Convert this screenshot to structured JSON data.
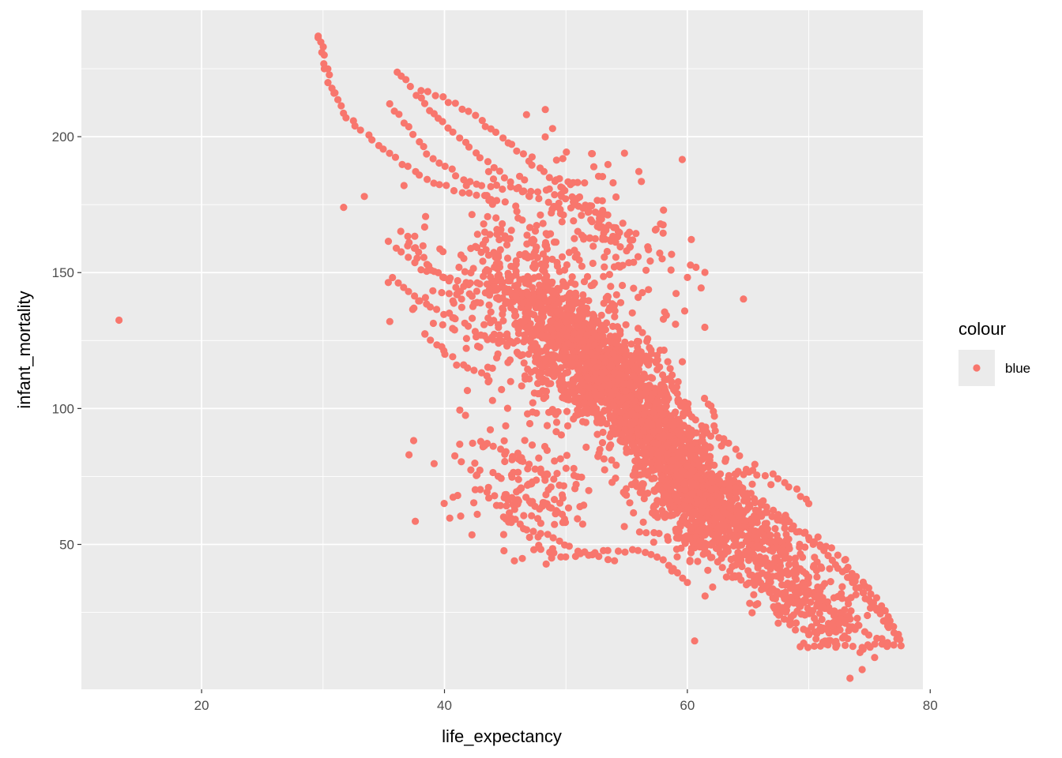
{
  "chart_data": {
    "type": "scatter",
    "title": "",
    "xlabel": "life_expectancy",
    "ylabel": "infant_mortality",
    "xlim": [
      10.1,
      79.4
    ],
    "ylim": [
      -3.3,
      246.5
    ],
    "x_ticks": [
      20,
      40,
      60,
      80
    ],
    "x_tick_labels": [
      "20",
      "40",
      "60",
      "80"
    ],
    "y_ticks": [
      50,
      100,
      150,
      200
    ],
    "y_tick_labels": [
      "50",
      "100",
      "150",
      "200"
    ],
    "grid": true,
    "legend": {
      "title": "colour",
      "position": "right",
      "entries": [
        {
          "label": "blue",
          "color": "#F8766D"
        }
      ]
    },
    "point_color": "#F8766D",
    "panel_color": "#EBEBEB",
    "series": [
      {
        "name": "blue",
        "notable_points": [
          {
            "x": 13.2,
            "y": 132.5
          },
          {
            "x": 29.6,
            "y": 237
          },
          {
            "x": 29.9,
            "y": 231
          },
          {
            "x": 30.1,
            "y": 225
          },
          {
            "x": 30.9,
            "y": 216
          },
          {
            "x": 31.7,
            "y": 174
          },
          {
            "x": 33.4,
            "y": 178
          },
          {
            "x": 35.5,
            "y": 132
          },
          {
            "x": 37.6,
            "y": 58.5
          },
          {
            "x": 48.3,
            "y": 210
          },
          {
            "x": 48.9,
            "y": 203
          },
          {
            "x": 60.6,
            "y": 14.5
          }
        ],
        "trajectories": [
          [
            [
              29.6,
              237
            ],
            [
              30.5,
              220
            ],
            [
              32,
              207
            ],
            [
              34,
              199
            ],
            [
              36.5,
              190
            ],
            [
              39,
              183
            ],
            [
              42,
              179
            ],
            [
              45,
              176
            ]
          ],
          [
            [
              36,
              224
            ],
            [
              38,
              214
            ],
            [
              40,
              205
            ],
            [
              42,
              196
            ],
            [
              44.5,
              187
            ],
            [
              47,
              178
            ]
          ],
          [
            [
              38,
              217
            ],
            [
              41,
              212
            ],
            [
              43,
              206
            ],
            [
              46,
              195
            ],
            [
              50,
              180
            ],
            [
              53,
              170
            ],
            [
              55.5,
              162
            ]
          ],
          [
            [
              35.5,
              212
            ],
            [
              37,
              203
            ],
            [
              39,
              192
            ],
            [
              42,
              183
            ],
            [
              46,
              181
            ],
            [
              49,
              179
            ],
            [
              51,
              175
            ],
            [
              53,
              167
            ],
            [
              55,
              158
            ]
          ],
          [
            [
              35.5,
              161
            ],
            [
              38,
              152
            ],
            [
              41,
              147
            ],
            [
              44,
              145
            ],
            [
              47,
              141
            ],
            [
              51,
              131
            ]
          ],
          [
            [
              36.5,
              165
            ],
            [
              39,
              151
            ],
            [
              42,
              143
            ],
            [
              45,
              144
            ],
            [
              48,
              135
            ]
          ],
          [
            [
              35.8,
              148
            ],
            [
              38,
              140
            ],
            [
              41,
              133
            ],
            [
              43,
              127
            ]
          ],
          [
            [
              37.5,
              137
            ],
            [
              39,
              143
            ],
            [
              41,
              142
            ]
          ],
          [
            [
              38.5,
              127
            ],
            [
              41,
              117
            ],
            [
              43.5,
              112
            ]
          ],
          [
            [
              46,
              149
            ],
            [
              49,
              138
            ],
            [
              51,
              126
            ],
            [
              53,
              113
            ],
            [
              55,
              101
            ],
            [
              57,
              90
            ],
            [
              59,
              80
            ],
            [
              61,
              71
            ],
            [
              63,
              63
            ]
          ],
          [
            [
              49,
              140
            ],
            [
              52,
              125
            ],
            [
              54,
              113
            ],
            [
              56,
              100
            ],
            [
              58,
              89
            ],
            [
              60,
              79
            ],
            [
              62,
              70
            ],
            [
              64,
              62
            ],
            [
              66,
              54
            ],
            [
              68,
              46
            ],
            [
              70,
              38
            ]
          ],
          [
            [
              56,
              130
            ],
            [
              58,
              113
            ],
            [
              60,
              99
            ],
            [
              62,
              90
            ],
            [
              64,
              85
            ]
          ],
          [
            [
              43,
              88
            ],
            [
              46,
              82
            ],
            [
              49,
              74
            ]
          ],
          [
            [
              45,
              59
            ],
            [
              48,
              54
            ],
            [
              51,
              48
            ],
            [
              54,
              44
            ]
          ],
          [
            [
              49,
              45
            ],
            [
              53,
              47
            ],
            [
              56,
              48
            ],
            [
              58,
              44
            ],
            [
              60,
              36
            ]
          ],
          [
            [
              56,
              55
            ],
            [
              59,
              53
            ],
            [
              62,
              50
            ],
            [
              65,
              40
            ],
            [
              68,
              30
            ]
          ],
          [
            [
              60,
              58
            ],
            [
              62,
              45
            ],
            [
              65,
              35
            ],
            [
              69,
              30
            ],
            [
              72,
              25
            ]
          ],
          [
            [
              62,
              75
            ],
            [
              65,
              68
            ],
            [
              68,
              60
            ],
            [
              70,
              52
            ],
            [
              72,
              44
            ],
            [
              74,
              34
            ],
            [
              76,
              25
            ],
            [
              77.6,
              12.7
            ]
          ],
          [
            [
              64,
              76
            ],
            [
              67,
              76
            ],
            [
              69,
              70
            ],
            [
              70,
              65
            ]
          ],
          [
            [
              63,
              72
            ],
            [
              66,
              63
            ],
            [
              69,
              55
            ],
            [
              72,
              48
            ],
            [
              74,
              38
            ],
            [
              76,
              28
            ],
            [
              77.5,
              15
            ]
          ],
          [
            [
              66,
              60
            ],
            [
              68,
              45
            ],
            [
              70,
              32
            ],
            [
              72,
              24
            ],
            [
              74,
              19
            ],
            [
              77,
              13
            ]
          ],
          [
            [
              69.5,
              13
            ],
            [
              71,
              12.5
            ],
            [
              73,
              12.6
            ],
            [
              75,
              13
            ],
            [
              77,
              13
            ]
          ],
          [
            [
              67,
              30
            ],
            [
              69,
              21
            ],
            [
              70,
              17
            ],
            [
              72,
              20
            ],
            [
              73,
              21
            ]
          ],
          [
            [
              71,
              42
            ],
            [
              73,
              40
            ],
            [
              75,
              30
            ],
            [
              76.5,
              20
            ]
          ],
          [
            [
              52,
              108
            ],
            [
              54,
              100
            ],
            [
              56,
              93
            ],
            [
              58,
              85
            ],
            [
              60,
              75
            ],
            [
              62,
              66
            ],
            [
              64,
              58
            ]
          ],
          [
            [
              47,
              120
            ],
            [
              49,
              112
            ],
            [
              51,
              104
            ],
            [
              53,
              96
            ],
            [
              55,
              88
            ],
            [
              57,
              80
            ]
          ],
          [
            [
              54,
              120
            ],
            [
              56,
              110
            ],
            [
              58,
              98
            ],
            [
              60,
              86
            ],
            [
              62,
              74
            ]
          ]
        ],
        "clouds": [
          {
            "cx": 54,
            "cy": 110,
            "sx": 4,
            "sy": 18,
            "rho": -0.8,
            "n": 1200
          },
          {
            "cx": 60,
            "cy": 70,
            "sx": 2.6,
            "sy": 14,
            "rho": -0.6,
            "n": 650
          },
          {
            "cx": 47.5,
            "cy": 130,
            "sx": 4,
            "sy": 20,
            "rho": -0.55,
            "n": 450
          },
          {
            "cx": 52,
            "cy": 165,
            "sx": 4,
            "sy": 15,
            "rho": -0.4,
            "n": 180
          },
          {
            "cx": 47,
            "cy": 70,
            "sx": 3,
            "sy": 12,
            "rho": -0.3,
            "n": 160
          },
          {
            "cx": 65,
            "cy": 55,
            "sx": 2.5,
            "sy": 12,
            "rho": -0.7,
            "n": 220
          },
          {
            "cx": 70,
            "cy": 28,
            "sx": 2.4,
            "sy": 10,
            "rho": -0.6,
            "n": 180
          }
        ]
      }
    ]
  }
}
